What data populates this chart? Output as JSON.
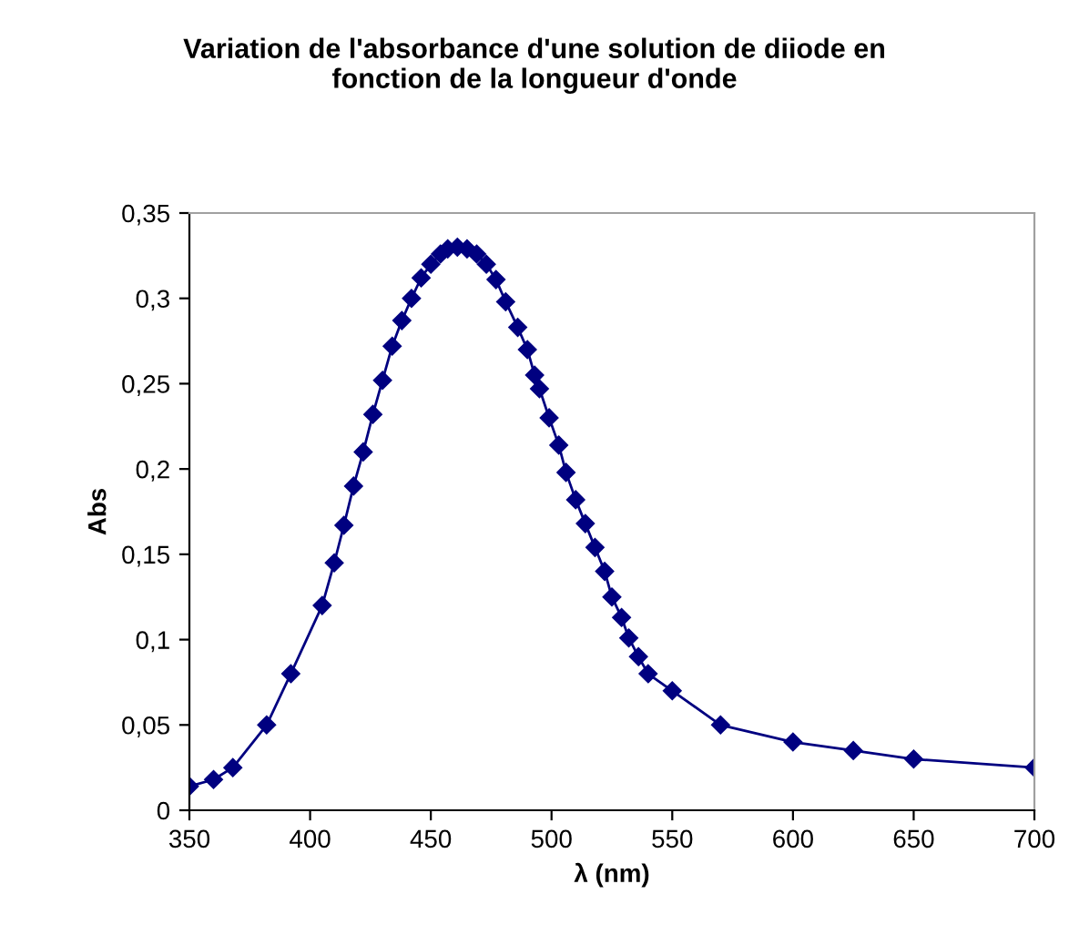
{
  "chart_data": {
    "type": "line",
    "title": "Variation de l'absorbance d'une solution de diiode en\nfonction de la longueur d'onde",
    "xlabel": "λ (nm)",
    "ylabel": "Abs",
    "series": [
      {
        "color": "#000080",
        "x": [
          350,
          360,
          368,
          382,
          392,
          405,
          410,
          414,
          418,
          422,
          426,
          430,
          434,
          438,
          442,
          446,
          450,
          454,
          457,
          461,
          465,
          469,
          473,
          477,
          481,
          486,
          490,
          493,
          495,
          499,
          503,
          506,
          510,
          514,
          518,
          522,
          525,
          529,
          532,
          536,
          540,
          550,
          570,
          600,
          625,
          650,
          700
        ],
        "values": [
          0.014,
          0.018,
          0.025,
          0.05,
          0.08,
          0.12,
          0.145,
          0.167,
          0.19,
          0.21,
          0.232,
          0.252,
          0.272,
          0.287,
          0.3,
          0.312,
          0.32,
          0.326,
          0.329,
          0.33,
          0.329,
          0.326,
          0.32,
          0.311,
          0.298,
          0.283,
          0.27,
          0.255,
          0.247,
          0.23,
          0.214,
          0.198,
          0.182,
          0.168,
          0.154,
          0.14,
          0.125,
          0.113,
          0.101,
          0.09,
          0.08,
          0.07,
          0.05,
          0.04,
          0.035,
          0.03,
          0.025
        ]
      }
    ],
    "xlim": [
      350,
      700
    ],
    "xticks": [
      350,
      400,
      450,
      500,
      550,
      600,
      650,
      700
    ],
    "ylim": [
      0,
      0.35
    ],
    "yticks": [
      {
        "value": 0,
        "label": "0"
      },
      {
        "value": 0.05,
        "label": "0,05"
      },
      {
        "value": 0.1,
        "label": "0,1"
      },
      {
        "value": 0.15,
        "label": "0,15"
      },
      {
        "value": 0.2,
        "label": "0,2"
      },
      {
        "value": 0.25,
        "label": "0,25"
      },
      {
        "value": 0.3,
        "label": "0,3"
      },
      {
        "value": 0.35,
        "label": "0,35"
      }
    ],
    "marker": "diamond",
    "line_style": "solid",
    "grid": false,
    "legend": false
  }
}
